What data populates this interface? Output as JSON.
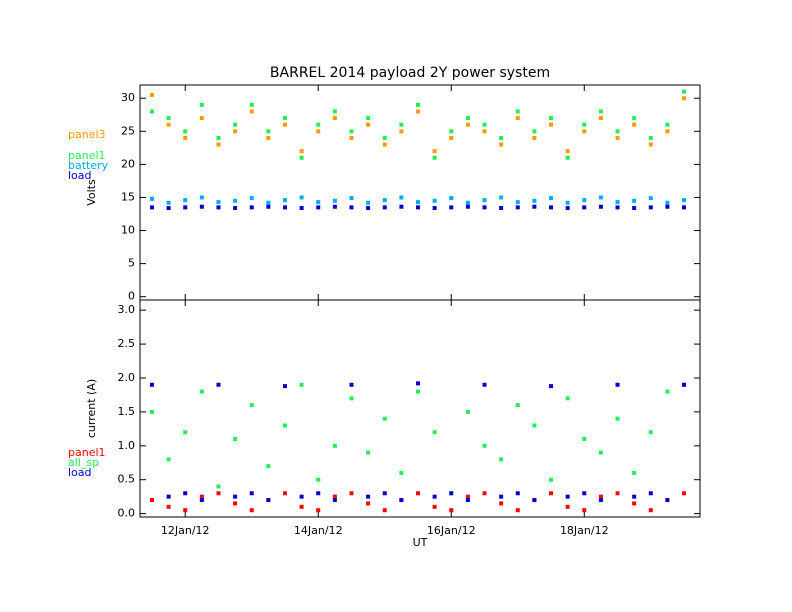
{
  "chart_data": [
    {
      "type": "scatter",
      "title": "BARREL 2014 payload 2Y power system",
      "ylabel": "Volts",
      "x": [
        11.5,
        11.75,
        12,
        12.25,
        12.5,
        12.75,
        13,
        13.25,
        13.5,
        13.75,
        14,
        14.25,
        14.5,
        14.75,
        15,
        15.25,
        15.5,
        15.75,
        16,
        16.25,
        16.5,
        16.75,
        17,
        17.25,
        17.5,
        17.75,
        18,
        18.25,
        18.5,
        18.75,
        19,
        19.25,
        19.5
      ],
      "series": [
        {
          "name": "panel3",
          "color": "#ff9900",
          "values": [
            30.5,
            26,
            24,
            27,
            23,
            25,
            28,
            24,
            26,
            22,
            25,
            27,
            24,
            26,
            23,
            25,
            28,
            22,
            24,
            26,
            25,
            23,
            27,
            24,
            26,
            22,
            25,
            27,
            24,
            26,
            23,
            25,
            30
          ]
        },
        {
          "name": "panel1",
          "color": "#22ee55",
          "values": [
            28,
            27,
            25,
            29,
            24,
            26,
            29,
            25,
            27,
            21,
            26,
            28,
            25,
            27,
            24,
            26,
            29,
            21,
            25,
            27,
            26,
            24,
            28,
            25,
            27,
            21,
            26,
            28,
            25,
            27,
            24,
            26,
            31
          ]
        },
        {
          "name": "battery",
          "color": "#00aaee",
          "values": [
            14.8,
            14.2,
            14.6,
            15.0,
            14.3,
            14.5,
            14.9,
            14.2,
            14.6,
            15.0,
            14.3,
            14.5,
            14.9,
            14.2,
            14.6,
            15.0,
            14.3,
            14.5,
            14.9,
            14.2,
            14.6,
            15.0,
            14.3,
            14.5,
            14.9,
            14.2,
            14.6,
            15.0,
            14.3,
            14.5,
            14.9,
            14.2,
            14.6
          ]
        },
        {
          "name": "load",
          "color": "#0000cc",
          "values": [
            13.5,
            13.4,
            13.5,
            13.6,
            13.5,
            13.4,
            13.5,
            13.6,
            13.5,
            13.4,
            13.5,
            13.6,
            13.5,
            13.4,
            13.5,
            13.6,
            13.5,
            13.4,
            13.5,
            13.6,
            13.5,
            13.4,
            13.5,
            13.6,
            13.5,
            13.4,
            13.5,
            13.6,
            13.5,
            13.4,
            13.5,
            13.6,
            13.5
          ]
        }
      ],
      "xlim": [
        11.32,
        19.74
      ],
      "ylim": [
        -0.5,
        32
      ],
      "xticks": [
        12,
        14,
        16,
        18
      ],
      "show_xtick_labels": false,
      "yticks": [
        0,
        5,
        10,
        15,
        20,
        25,
        30
      ]
    },
    {
      "type": "scatter",
      "ylabel": "current (A)",
      "xlabel": "UT",
      "x": [
        11.5,
        11.75,
        12,
        12.25,
        12.5,
        12.75,
        13,
        13.25,
        13.5,
        13.75,
        14,
        14.25,
        14.5,
        14.75,
        15,
        15.25,
        15.5,
        15.75,
        16,
        16.25,
        16.5,
        16.75,
        17,
        17.25,
        17.5,
        17.75,
        18,
        18.25,
        18.5,
        18.75,
        19,
        19.25,
        19.5
      ],
      "series": [
        {
          "name": "panel1",
          "color": "#ff0000",
          "values": [
            0.2,
            0.1,
            0.05,
            0.25,
            0.3,
            0.15,
            0.05,
            0.2,
            0.3,
            0.1,
            0.05,
            0.25,
            0.3,
            0.15,
            0.05,
            0.2,
            0.3,
            0.1,
            0.05,
            0.25,
            0.3,
            0.15,
            0.05,
            0.2,
            0.3,
            0.1,
            0.05,
            0.25,
            0.3,
            0.15,
            0.05,
            0.2,
            0.3
          ]
        },
        {
          "name": "all_sp",
          "color": "#22ee55",
          "values": [
            1.5,
            0.8,
            1.2,
            1.8,
            0.4,
            1.1,
            1.6,
            0.7,
            1.3,
            1.9,
            0.5,
            1.0,
            1.7,
            0.9,
            1.4,
            0.6,
            1.8,
            1.2,
            0.3,
            1.5,
            1.0,
            0.8,
            1.6,
            1.3,
            0.5,
            1.7,
            1.1,
            0.9,
            1.4,
            0.6,
            1.2,
            1.8,
            1.9
          ]
        },
        {
          "name": "load",
          "color": "#0000cc",
          "values": [
            1.9,
            0.25,
            0.3,
            0.2,
            1.9,
            0.25,
            0.3,
            0.2,
            1.88,
            0.25,
            0.3,
            0.2,
            1.9,
            0.25,
            0.3,
            0.2,
            1.92,
            0.25,
            0.3,
            0.2,
            1.9,
            0.25,
            0.3,
            0.2,
            1.88,
            0.25,
            0.3,
            0.2,
            1.9,
            0.25,
            0.3,
            0.2,
            1.9
          ]
        }
      ],
      "xlim": [
        11.32,
        19.74
      ],
      "ylim": [
        -0.05,
        3.15
      ],
      "show_xtick_labels": true,
      "xticks": [
        {
          "value": 12,
          "label": "12Jan/12"
        },
        {
          "value": 14,
          "label": "14Jan/12"
        },
        {
          "value": 16,
          "label": "16Jan/12"
        },
        {
          "value": 18,
          "label": "18Jan/12"
        }
      ],
      "yticks": [
        {
          "value": 0,
          "label": "0.0"
        },
        0.5,
        {
          "value": 1,
          "label": "1.0"
        },
        1.5,
        {
          "value": 2,
          "label": "2.0"
        },
        2.5,
        {
          "value": 3,
          "label": "3.0"
        }
      ]
    }
  ]
}
